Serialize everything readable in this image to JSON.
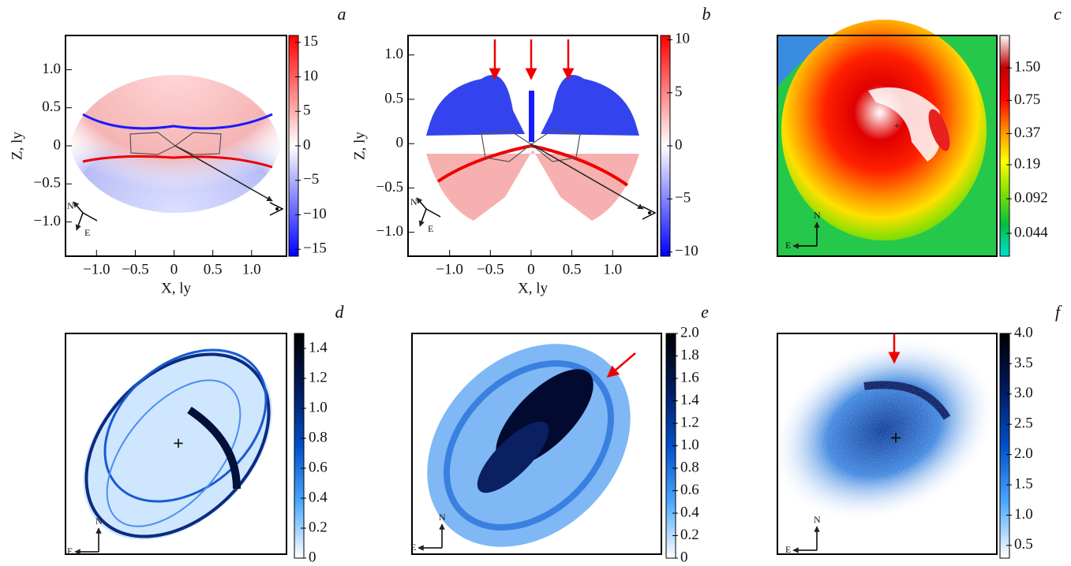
{
  "chart_data": [
    {
      "type": "heatmap",
      "panel": "a",
      "xlabel": "X, ly",
      "ylabel": "Z, ly",
      "xlim": [
        -1.4,
        1.45
      ],
      "xticks": [
        {
          "value": -1,
          "label": "−1.0"
        },
        {
          "value": -0.5,
          "label": "−0.5"
        },
        0,
        0.5,
        {
          "value": 1,
          "label": "1.0"
        }
      ],
      "ylim": [
        -1.45,
        1.45
      ],
      "yticks": [
        {
          "value": 1,
          "label": "1.0"
        },
        0.5,
        0,
        {
          "value": -0.5,
          "label": "−0.5"
        },
        {
          "value": -1,
          "label": "−1.0"
        }
      ],
      "clim": [
        -16,
        16
      ],
      "cticks": [
        15,
        10,
        5,
        0,
        {
          "value": -5,
          "label": "−5"
        },
        {
          "value": -10,
          "label": "−10"
        },
        {
          "value": -15,
          "label": "−15"
        }
      ],
      "colors": [
        "#0000ff",
        "#ffffff",
        "#ff0000"
      ],
      "compass": {
        "n": "N",
        "e": "E"
      }
    },
    {
      "type": "heatmap",
      "panel": "b",
      "xlabel": "X, ly",
      "ylabel": "Z, ly",
      "xlim": [
        -1.51,
        1.55
      ],
      "xticks": [
        {
          "value": -1,
          "label": "−1.0"
        },
        {
          "value": -0.5,
          "label": "−0.5"
        },
        0,
        0.5,
        {
          "value": 1,
          "label": "1.0"
        }
      ],
      "ylim": [
        -1.27,
        1.22
      ],
      "yticks": [
        {
          "value": 1,
          "label": "1.0"
        },
        0.5,
        0,
        {
          "value": -0.5,
          "label": "−0.5"
        },
        {
          "value": -1,
          "label": "−1.0"
        }
      ],
      "clim": [
        -10.4,
        10.4
      ],
      "cticks": [
        10,
        5,
        0,
        {
          "value": -5,
          "label": "−5"
        },
        {
          "value": -10,
          "label": "−10"
        }
      ],
      "colors": [
        "#0000ff",
        "#ffffff",
        "#ff0000"
      ],
      "compass": {
        "n": "N",
        "e": "E"
      }
    },
    {
      "type": "heatmap",
      "panel": "c",
      "clim": [
        0.027,
        3.0
      ],
      "log": true,
      "cticks": [
        {
          "value": 1.5,
          "label": "1.50"
        },
        0.75,
        0.37,
        0.19,
        0.092,
        0.044
      ],
      "colors": [
        "#00e0d0",
        "#00c040",
        "#80e000",
        "#ffff00",
        "#ff9000",
        "#ff0000",
        "#c00000",
        "#ffffff"
      ],
      "compass": {
        "n": "N",
        "e": "E"
      }
    },
    {
      "type": "heatmap",
      "panel": "d",
      "clim": [
        0,
        1.5
      ],
      "cticks": [
        {
          "value": 1.4,
          "label": "1.4"
        },
        1.2,
        {
          "value": 1,
          "label": "1.0"
        },
        0.8,
        0.6,
        0.4,
        0.2,
        0
      ],
      "colors": [
        "#ffffff",
        "#4aa8ff",
        "#0050c8",
        "#001a60",
        "#000000"
      ],
      "compass": {
        "n": "N",
        "e": "E"
      }
    },
    {
      "type": "heatmap",
      "panel": "e",
      "clim": [
        0,
        2.0
      ],
      "cticks": [
        {
          "value": 2,
          "label": "2.0"
        },
        1.8,
        1.6,
        1.4,
        1.2,
        {
          "value": 1,
          "label": "1.0"
        },
        0.8,
        0.6,
        0.4,
        0.2,
        0
      ],
      "colors": [
        "#ffffff",
        "#4aa8ff",
        "#0050c8",
        "#001a60",
        "#000000"
      ],
      "compass": {
        "n": "N",
        "e": "E"
      }
    },
    {
      "type": "heatmap",
      "panel": "f",
      "clim": [
        0.29,
        4.0
      ],
      "cticks": [
        {
          "value": 4,
          "label": "4.0"
        },
        3.5,
        {
          "value": 3,
          "label": "3.0"
        },
        2.5,
        {
          "value": 2,
          "label": "2.0"
        },
        1.5,
        {
          "value": 1,
          "label": "1.0"
        },
        0.5
      ],
      "colors": [
        "#ffffff",
        "#4aa8ff",
        "#0050c8",
        "#001a60",
        "#000000"
      ],
      "compass": {
        "n": "N",
        "e": "E"
      }
    }
  ]
}
